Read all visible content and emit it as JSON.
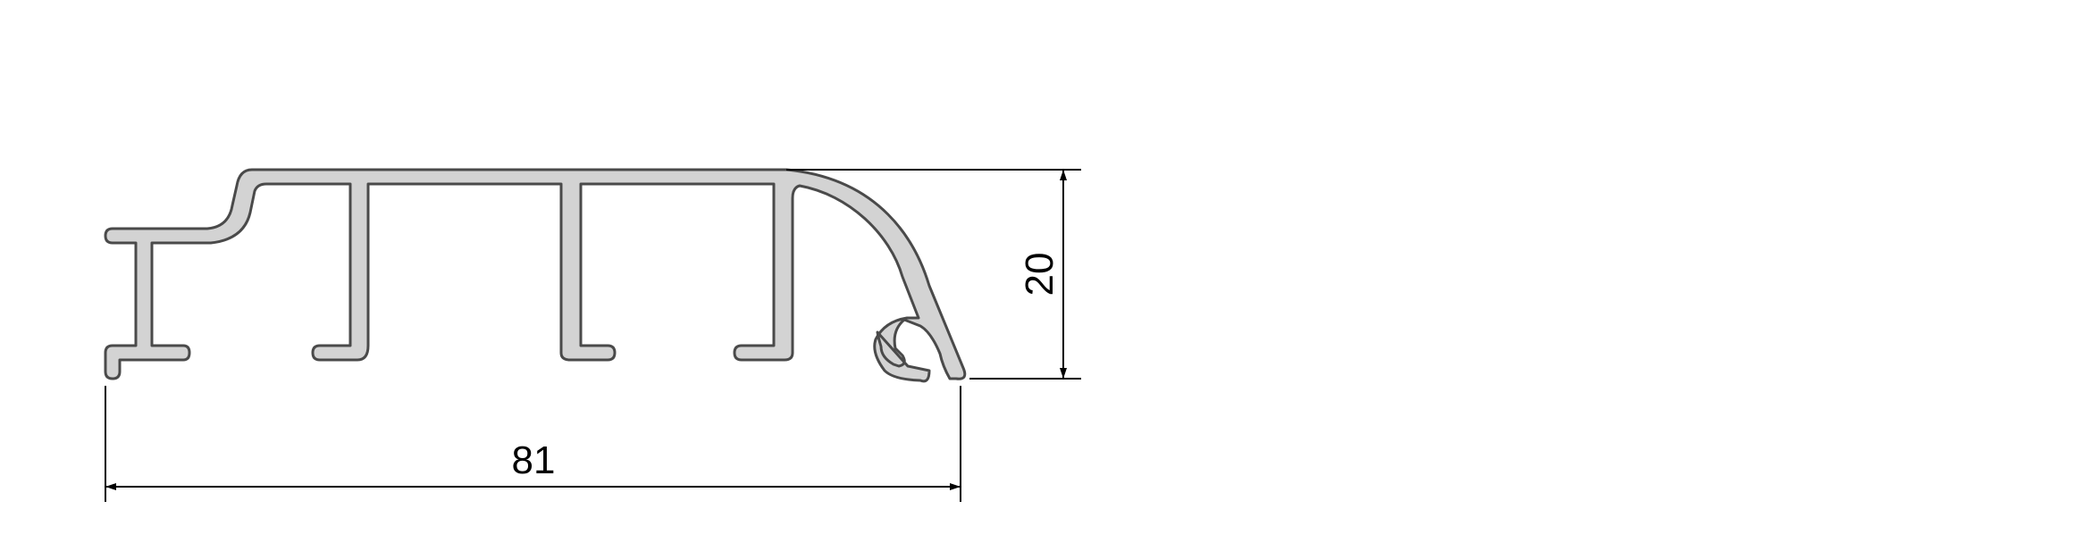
{
  "drawing": {
    "type": "aluminium-profile-cross-section",
    "profile_fill": "#d3d3d3",
    "profile_stroke": "#4a4a4a",
    "dimension_color": "#000000"
  },
  "dimensions": {
    "width_label": "81",
    "height_label": "20"
  }
}
